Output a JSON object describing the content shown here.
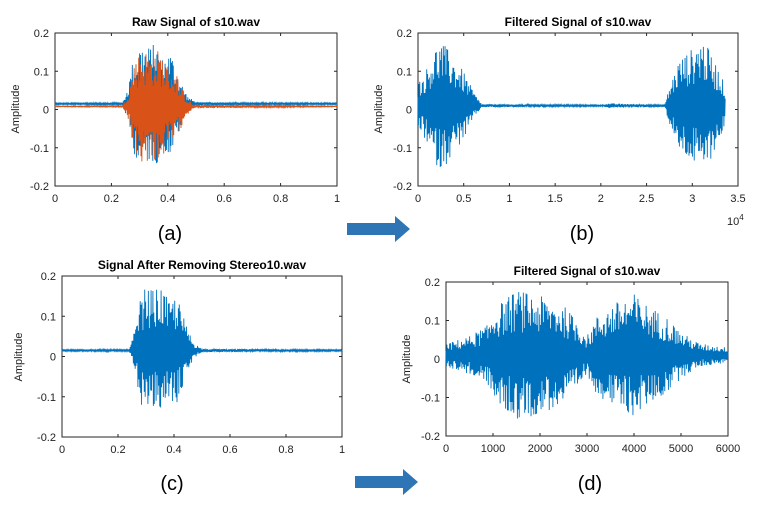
{
  "chart_data": [
    {
      "id": "a",
      "type": "line",
      "title": "Raw Signal of s10.wav",
      "caption": "(a)",
      "xlabel": "",
      "ylabel": "Amplitude",
      "xlim": [
        0,
        1
      ],
      "ylim": [
        -0.2,
        0.2
      ],
      "xticks": [
        "0",
        "0.2",
        "0.4",
        "0.6",
        "0.8",
        "1"
      ],
      "yticks": [
        "0.2",
        "0.1",
        "0",
        "-0.1",
        "-0.2"
      ],
      "exponent": "",
      "series": [
        {
          "color": "#0072BD",
          "baseline": 0.015,
          "envelope": [
            [
              0,
              0.002
            ],
            [
              0.24,
              0.003
            ],
            [
              0.26,
              0.05
            ],
            [
              0.28,
              0.13
            ],
            [
              0.3,
              0.16
            ],
            [
              0.33,
              0.15
            ],
            [
              0.36,
              0.16
            ],
            [
              0.38,
              0.12
            ],
            [
              0.41,
              0.14
            ],
            [
              0.44,
              0.07
            ],
            [
              0.47,
              0.02
            ],
            [
              0.5,
              0.004
            ],
            [
              1,
              0.002
            ]
          ]
        },
        {
          "color": "#D95319",
          "baseline": 0.008,
          "envelope": [
            [
              0,
              0.001
            ],
            [
              0.24,
              0.002
            ],
            [
              0.26,
              0.04
            ],
            [
              0.28,
              0.12
            ],
            [
              0.31,
              0.15
            ],
            [
              0.34,
              0.14
            ],
            [
              0.37,
              0.15
            ],
            [
              0.4,
              0.11
            ],
            [
              0.43,
              0.09
            ],
            [
              0.46,
              0.03
            ],
            [
              0.49,
              0.005
            ],
            [
              1,
              0.001
            ]
          ]
        }
      ]
    },
    {
      "id": "b",
      "type": "line",
      "title": "Filtered Signal of s10.wav",
      "caption": "(b)",
      "xlabel": "",
      "ylabel": "Amplitude",
      "xlim": [
        0,
        3.5
      ],
      "ylim": [
        -0.2,
        0.2
      ],
      "xticks": [
        "0",
        "0.5",
        "1",
        "1.5",
        "2",
        "2.5",
        "3",
        "3.5"
      ],
      "yticks": [
        "0.2",
        "0.1",
        "0",
        "-0.1",
        "-0.2"
      ],
      "exponent": "10",
      "exponent_power": "4",
      "series": [
        {
          "color": "#0072BD",
          "baseline": 0.01,
          "envelope": [
            [
              0,
              0.06
            ],
            [
              0.08,
              0.09
            ],
            [
              0.18,
              0.15
            ],
            [
              0.25,
              0.17
            ],
            [
              0.32,
              0.15
            ],
            [
              0.4,
              0.12
            ],
            [
              0.5,
              0.09
            ],
            [
              0.58,
              0.05
            ],
            [
              0.65,
              0.02
            ],
            [
              0.7,
              0.004
            ],
            [
              2.05,
              0.002
            ],
            [
              2.06,
              0.006
            ],
            [
              2.7,
              0.003
            ],
            [
              2.75,
              0.05
            ],
            [
              2.85,
              0.12
            ],
            [
              3.0,
              0.15
            ],
            [
              3.1,
              0.18
            ],
            [
              3.2,
              0.14
            ],
            [
              3.3,
              0.09
            ],
            [
              3.36,
              0.05
            ]
          ]
        }
      ]
    },
    {
      "id": "c",
      "type": "line",
      "title": "Signal After Removing Stereo10.wav",
      "caption": "(c)",
      "xlabel": "",
      "ylabel": "Amplitude",
      "xlim": [
        0,
        1
      ],
      "ylim": [
        -0.2,
        0.2
      ],
      "xticks": [
        "0",
        "0.2",
        "0.4",
        "0.6",
        "0.8",
        "1"
      ],
      "yticks": [
        "0.2",
        "0.1",
        "0",
        "-0.1",
        "-0.2"
      ],
      "exponent": "",
      "series": [
        {
          "color": "#0072BD",
          "baseline": 0.015,
          "envelope": [
            [
              0,
              0.002
            ],
            [
              0.24,
              0.003
            ],
            [
              0.26,
              0.05
            ],
            [
              0.28,
              0.13
            ],
            [
              0.3,
              0.16
            ],
            [
              0.33,
              0.15
            ],
            [
              0.36,
              0.16
            ],
            [
              0.38,
              0.12
            ],
            [
              0.41,
              0.14
            ],
            [
              0.44,
              0.07
            ],
            [
              0.47,
              0.02
            ],
            [
              0.5,
              0.004
            ],
            [
              1,
              0.002
            ]
          ]
        }
      ]
    },
    {
      "id": "d",
      "type": "line",
      "title": "Filtered Signal of s10.wav",
      "caption": "(d)",
      "xlabel": "",
      "ylabel": "Amplitude",
      "xlim": [
        0,
        6000
      ],
      "ylim": [
        -0.2,
        0.2
      ],
      "xticks": [
        "0",
        "1000",
        "2000",
        "3000",
        "4000",
        "5000",
        "6000"
      ],
      "yticks": [
        "0.2",
        "0.1",
        "0",
        "-0.1",
        "-0.2"
      ],
      "exponent": "",
      "series": [
        {
          "color": "#0072BD",
          "baseline": 0.01,
          "envelope": [
            [
              0,
              0.03
            ],
            [
              500,
              0.05
            ],
            [
              900,
              0.08
            ],
            [
              1000,
              0.12
            ],
            [
              1200,
              0.14
            ],
            [
              1500,
              0.17
            ],
            [
              1800,
              0.16
            ],
            [
              2100,
              0.15
            ],
            [
              2500,
              0.13
            ],
            [
              2800,
              0.09
            ],
            [
              3000,
              0.05
            ],
            [
              3200,
              0.1
            ],
            [
              3500,
              0.13
            ],
            [
              3800,
              0.15
            ],
            [
              4000,
              0.16
            ],
            [
              4300,
              0.13
            ],
            [
              4700,
              0.1
            ],
            [
              5000,
              0.06
            ],
            [
              5400,
              0.03
            ],
            [
              6000,
              0.02
            ]
          ]
        }
      ]
    }
  ],
  "arrows": {
    "color": "#2E75B6"
  }
}
